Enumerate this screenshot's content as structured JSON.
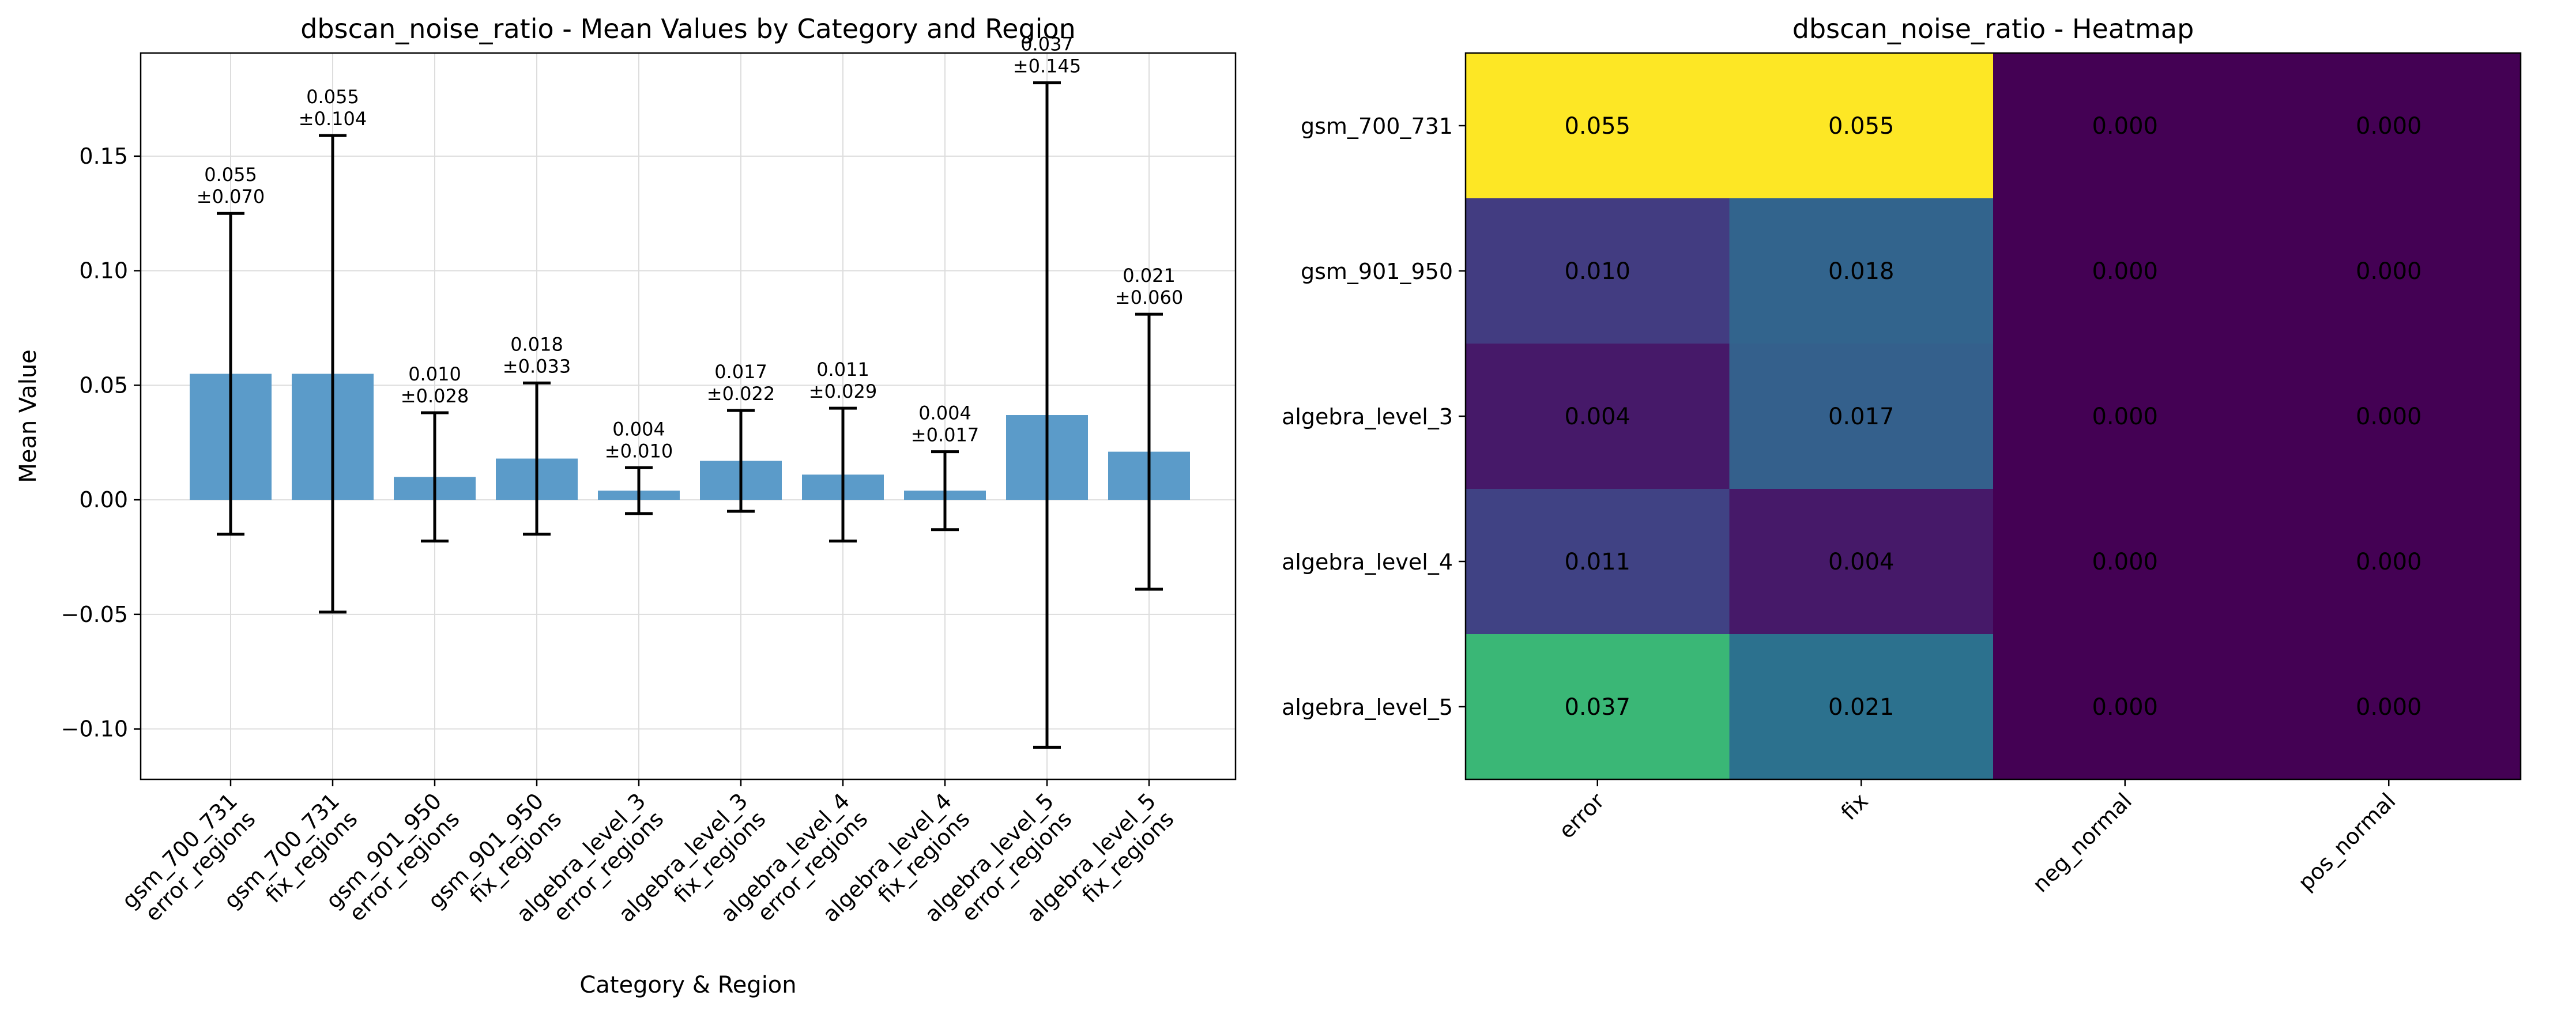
{
  "chart_data": [
    {
      "type": "bar",
      "title": "dbscan_noise_ratio - Mean Values by Category and Region",
      "xlabel": "Category & Region",
      "ylabel": "Mean Value",
      "ylim": [
        -0.122,
        0.195
      ],
      "yticks": [
        -0.1,
        -0.05,
        0.0,
        0.05,
        0.1,
        0.15
      ],
      "ytick_labels": [
        "−0.10",
        "−0.05",
        "0.00",
        "0.05",
        "0.10",
        "0.15"
      ],
      "grid": true,
      "bar_color": "#5b9bc9",
      "categories": [
        {
          "line1": "gsm_700_731",
          "line2": "error_regions"
        },
        {
          "line1": "gsm_700_731",
          "line2": "fix_regions"
        },
        {
          "line1": "gsm_901_950",
          "line2": "error_regions"
        },
        {
          "line1": "gsm_901_950",
          "line2": "fix_regions"
        },
        {
          "line1": "algebra_level_3",
          "line2": "error_regions"
        },
        {
          "line1": "algebra_level_3",
          "line2": "fix_regions"
        },
        {
          "line1": "algebra_level_4",
          "line2": "error_regions"
        },
        {
          "line1": "algebra_level_4",
          "line2": "fix_regions"
        },
        {
          "line1": "algebra_level_5",
          "line2": "error_regions"
        },
        {
          "line1": "algebra_level_5",
          "line2": "fix_regions"
        }
      ],
      "values": [
        0.055,
        0.055,
        0.01,
        0.018,
        0.004,
        0.017,
        0.011,
        0.004,
        0.037,
        0.021
      ],
      "errors": [
        0.07,
        0.104,
        0.028,
        0.033,
        0.01,
        0.022,
        0.029,
        0.017,
        0.145,
        0.06
      ],
      "labels": [
        {
          "mean": "0.055",
          "err": "±0.070"
        },
        {
          "mean": "0.055",
          "err": "±0.104"
        },
        {
          "mean": "0.010",
          "err": "±0.028"
        },
        {
          "mean": "0.018",
          "err": "±0.033"
        },
        {
          "mean": "0.004",
          "err": "±0.010"
        },
        {
          "mean": "0.017",
          "err": "±0.022"
        },
        {
          "mean": "0.011",
          "err": "±0.029"
        },
        {
          "mean": "0.004",
          "err": "±0.017"
        },
        {
          "mean": "0.037",
          "err": "±0.145"
        },
        {
          "mean": "0.021",
          "err": "±0.060"
        }
      ]
    },
    {
      "type": "heatmap",
      "title": "dbscan_noise_ratio - Heatmap",
      "colormap": "viridis",
      "color_range": [
        0.0,
        0.055
      ],
      "rows": [
        "gsm_700_731",
        "gsm_901_950",
        "algebra_level_3",
        "algebra_level_4",
        "algebra_level_5"
      ],
      "columns": [
        "error",
        "fix",
        "neg_normal",
        "pos_normal"
      ],
      "values": [
        [
          0.055,
          0.055,
          0.0,
          0.0
        ],
        [
          0.01,
          0.018,
          0.0,
          0.0
        ],
        [
          0.004,
          0.017,
          0.0,
          0.0
        ],
        [
          0.011,
          0.004,
          0.0,
          0.0
        ],
        [
          0.037,
          0.021,
          0.0,
          0.0
        ]
      ],
      "cell_labels": [
        [
          "0.055",
          "0.055",
          "0.000",
          "0.000"
        ],
        [
          "0.010",
          "0.018",
          "0.000",
          "0.000"
        ],
        [
          "0.004",
          "0.017",
          "0.000",
          "0.000"
        ],
        [
          "0.011",
          "0.004",
          "0.000",
          "0.000"
        ],
        [
          "0.037",
          "0.021",
          "0.000",
          "0.000"
        ]
      ]
    }
  ]
}
